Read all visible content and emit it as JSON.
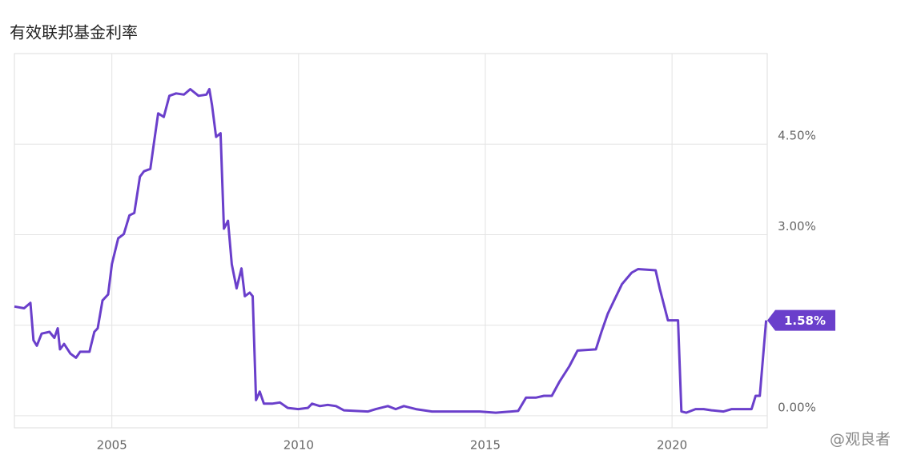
{
  "chart_data": {
    "type": "line",
    "title": "有效联邦基金利率",
    "watermark": "@观良者",
    "x": [
      2002.39,
      2002.65,
      2002.82,
      2002.9,
      2002.99,
      2003.12,
      2003.33,
      2003.46,
      2003.55,
      2003.61,
      2003.72,
      2003.89,
      2004.04,
      2004.15,
      2004.4,
      2004.53,
      2004.62,
      2004.75,
      2004.9,
      2005.0,
      2005.17,
      2005.32,
      2005.47,
      2005.6,
      2005.75,
      2005.86,
      2006.03,
      2006.12,
      2006.24,
      2006.39,
      2006.54,
      2006.72,
      2006.93,
      2007.1,
      2007.32,
      2007.53,
      2007.61,
      2007.68,
      2007.79,
      2007.91,
      2008.0,
      2008.11,
      2008.21,
      2008.34,
      2008.47,
      2008.56,
      2008.69,
      2008.77,
      2008.86,
      2008.96,
      2009.07,
      2009.29,
      2009.5,
      2009.71,
      2009.99,
      2010.25,
      2010.36,
      2010.57,
      2010.78,
      2011.0,
      2011.21,
      2011.53,
      2011.86,
      2012.07,
      2012.39,
      2012.6,
      2012.82,
      2013.14,
      2013.57,
      2014.21,
      2014.85,
      2015.28,
      2015.88,
      2016.09,
      2016.35,
      2016.57,
      2016.78,
      2016.99,
      2017.25,
      2017.47,
      2017.96,
      2018.11,
      2018.28,
      2018.45,
      2018.66,
      2018.92,
      2019.09,
      2019.56,
      2019.67,
      2019.89,
      2020.04,
      2020.16,
      2020.25,
      2020.38,
      2020.63,
      2020.85,
      2021.06,
      2021.38,
      2021.6,
      2022.13,
      2022.24,
      2022.35,
      2022.52
    ],
    "series": [
      {
        "color": "#6a3fcb",
        "values": [
          1.81,
          1.78,
          1.87,
          1.25,
          1.16,
          1.36,
          1.39,
          1.29,
          1.45,
          1.1,
          1.19,
          1.03,
          0.96,
          1.06,
          1.06,
          1.39,
          1.45,
          1.91,
          2.01,
          2.51,
          2.94,
          3.01,
          3.32,
          3.36,
          3.96,
          4.05,
          4.09,
          4.49,
          5.01,
          4.95,
          5.3,
          5.34,
          5.32,
          5.41,
          5.3,
          5.32,
          5.41,
          5.15,
          4.62,
          4.68,
          3.1,
          3.23,
          2.51,
          2.11,
          2.44,
          1.98,
          2.04,
          1.98,
          0.26,
          0.4,
          0.2,
          0.2,
          0.22,
          0.13,
          0.11,
          0.13,
          0.2,
          0.16,
          0.18,
          0.16,
          0.09,
          0.08,
          0.07,
          0.11,
          0.16,
          0.11,
          0.16,
          0.11,
          0.07,
          0.07,
          0.07,
          0.05,
          0.08,
          0.3,
          0.3,
          0.33,
          0.33,
          0.57,
          0.82,
          1.08,
          1.1,
          1.39,
          1.69,
          1.91,
          2.18,
          2.37,
          2.43,
          2.41,
          2.11,
          1.58,
          1.58,
          1.58,
          0.07,
          0.05,
          0.11,
          0.11,
          0.09,
          0.07,
          0.11,
          0.11,
          0.33,
          0.33,
          1.58
        ]
      }
    ],
    "end_label": {
      "value": 1.58,
      "label": "1.58%"
    },
    "xlim": [
      2002.39,
      2022.55
    ],
    "xticks": [
      2005,
      2010,
      2015,
      2020
    ],
    "ylim": [
      -0.2,
      6.0
    ],
    "yticks": [
      {
        "value": 0,
        "label": "0.00%"
      },
      {
        "value": 1.5,
        "label": null
      },
      {
        "value": 3,
        "label": "3.00%"
      },
      {
        "value": 4.5,
        "label": "4.50%"
      }
    ],
    "grid": true
  }
}
